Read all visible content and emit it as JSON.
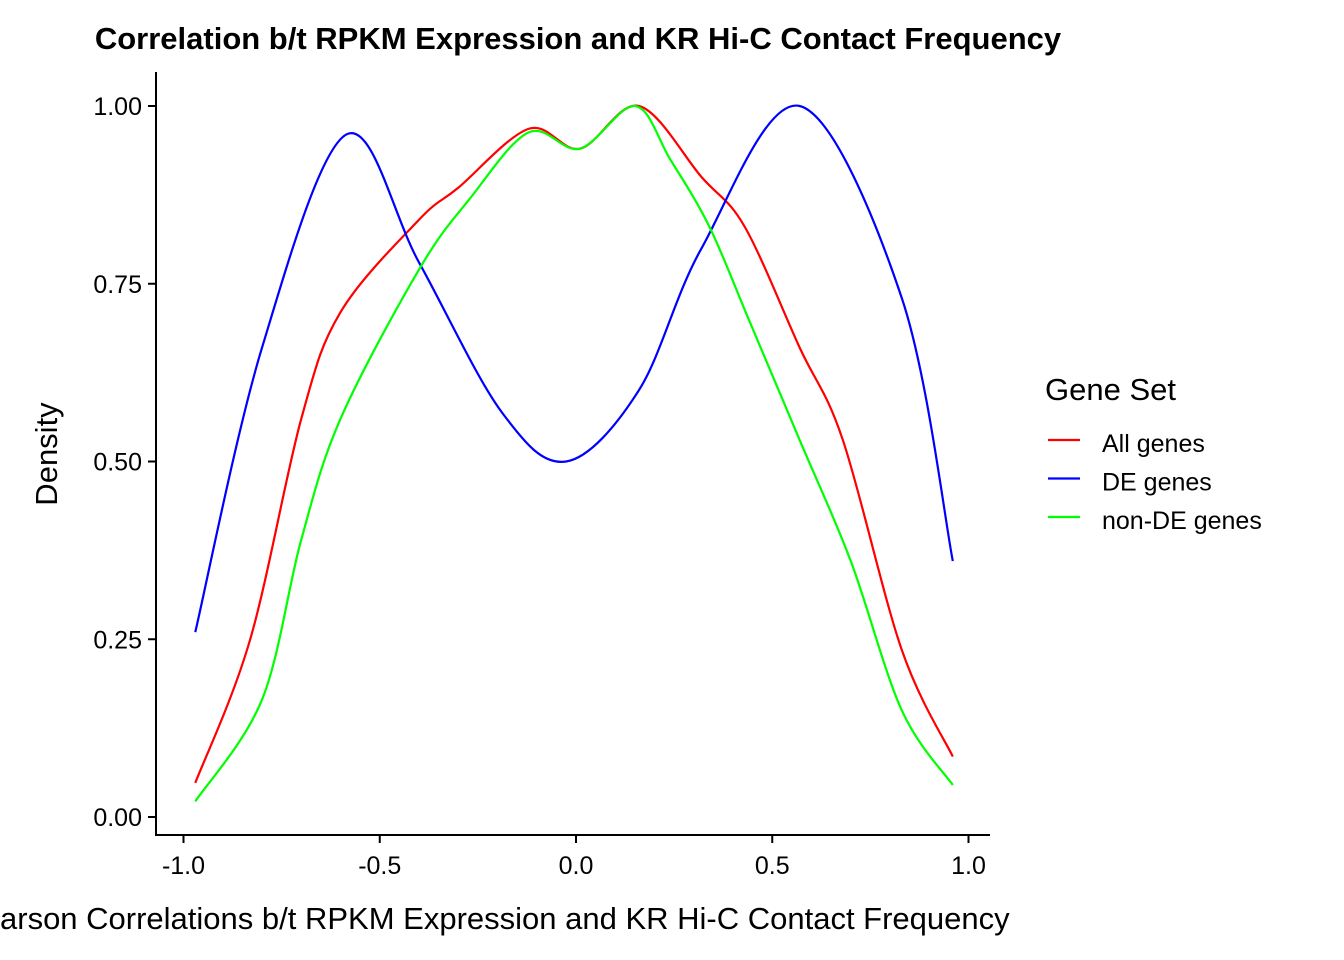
{
  "chart_data": {
    "type": "line",
    "title": "Correlation b/t RPKM Expression and KR Hi-C Contact Frequency",
    "xlabel": "arson Correlations b/t RPKM Expression and KR Hi-C Contact Frequency",
    "ylabel": "Density",
    "xlim": [
      -1.05,
      1.05
    ],
    "ylim": [
      -0.03,
      1.05
    ],
    "xticks": [
      -1.0,
      -0.5,
      0.0,
      0.5,
      1.0
    ],
    "xtick_labels": [
      "-1.0",
      "-0.5",
      "0.0",
      "0.5",
      "1.0"
    ],
    "yticks": [
      0,
      0.25,
      0.5,
      0.75,
      1.0
    ],
    "ytick_labels": [
      "0.00",
      "0.25",
      "0.50",
      "0.75",
      "1.00"
    ],
    "grid": false,
    "legend": {
      "title": "Gene Set",
      "placement": "right"
    },
    "series": [
      {
        "name": "All genes",
        "color": "#FF0000",
        "x": [
          -0.97,
          -0.83,
          -0.7,
          -0.6,
          -0.4,
          -0.3,
          -0.12,
          0.01,
          0.16,
          0.32,
          0.43,
          0.57,
          0.68,
          0.83,
          0.96
        ],
        "y": [
          0.048,
          0.25,
          0.56,
          0.71,
          0.84,
          0.885,
          0.968,
          0.94,
          1.0,
          0.9,
          0.83,
          0.66,
          0.53,
          0.235,
          0.085
        ]
      },
      {
        "name": "DE genes",
        "color": "#0000FF",
        "x": [
          -0.97,
          -0.8,
          -0.585,
          -0.4,
          -0.19,
          -0.025,
          0.16,
          0.32,
          0.57,
          0.83,
          0.96
        ],
        "y": [
          0.26,
          0.66,
          0.96,
          0.78,
          0.57,
          0.5,
          0.6,
          0.8,
          1.0,
          0.73,
          0.36
        ]
      },
      {
        "name": "non-DE genes",
        "color": "#00FF00",
        "x": [
          -0.97,
          -0.8,
          -0.7,
          -0.6,
          -0.4,
          -0.27,
          -0.12,
          0.01,
          0.15,
          0.24,
          0.34,
          0.44,
          0.57,
          0.7,
          0.83,
          0.96
        ],
        "y": [
          0.022,
          0.165,
          0.39,
          0.56,
          0.77,
          0.87,
          0.963,
          0.94,
          1.0,
          0.925,
          0.83,
          0.7,
          0.53,
          0.36,
          0.15,
          0.045
        ]
      }
    ]
  }
}
